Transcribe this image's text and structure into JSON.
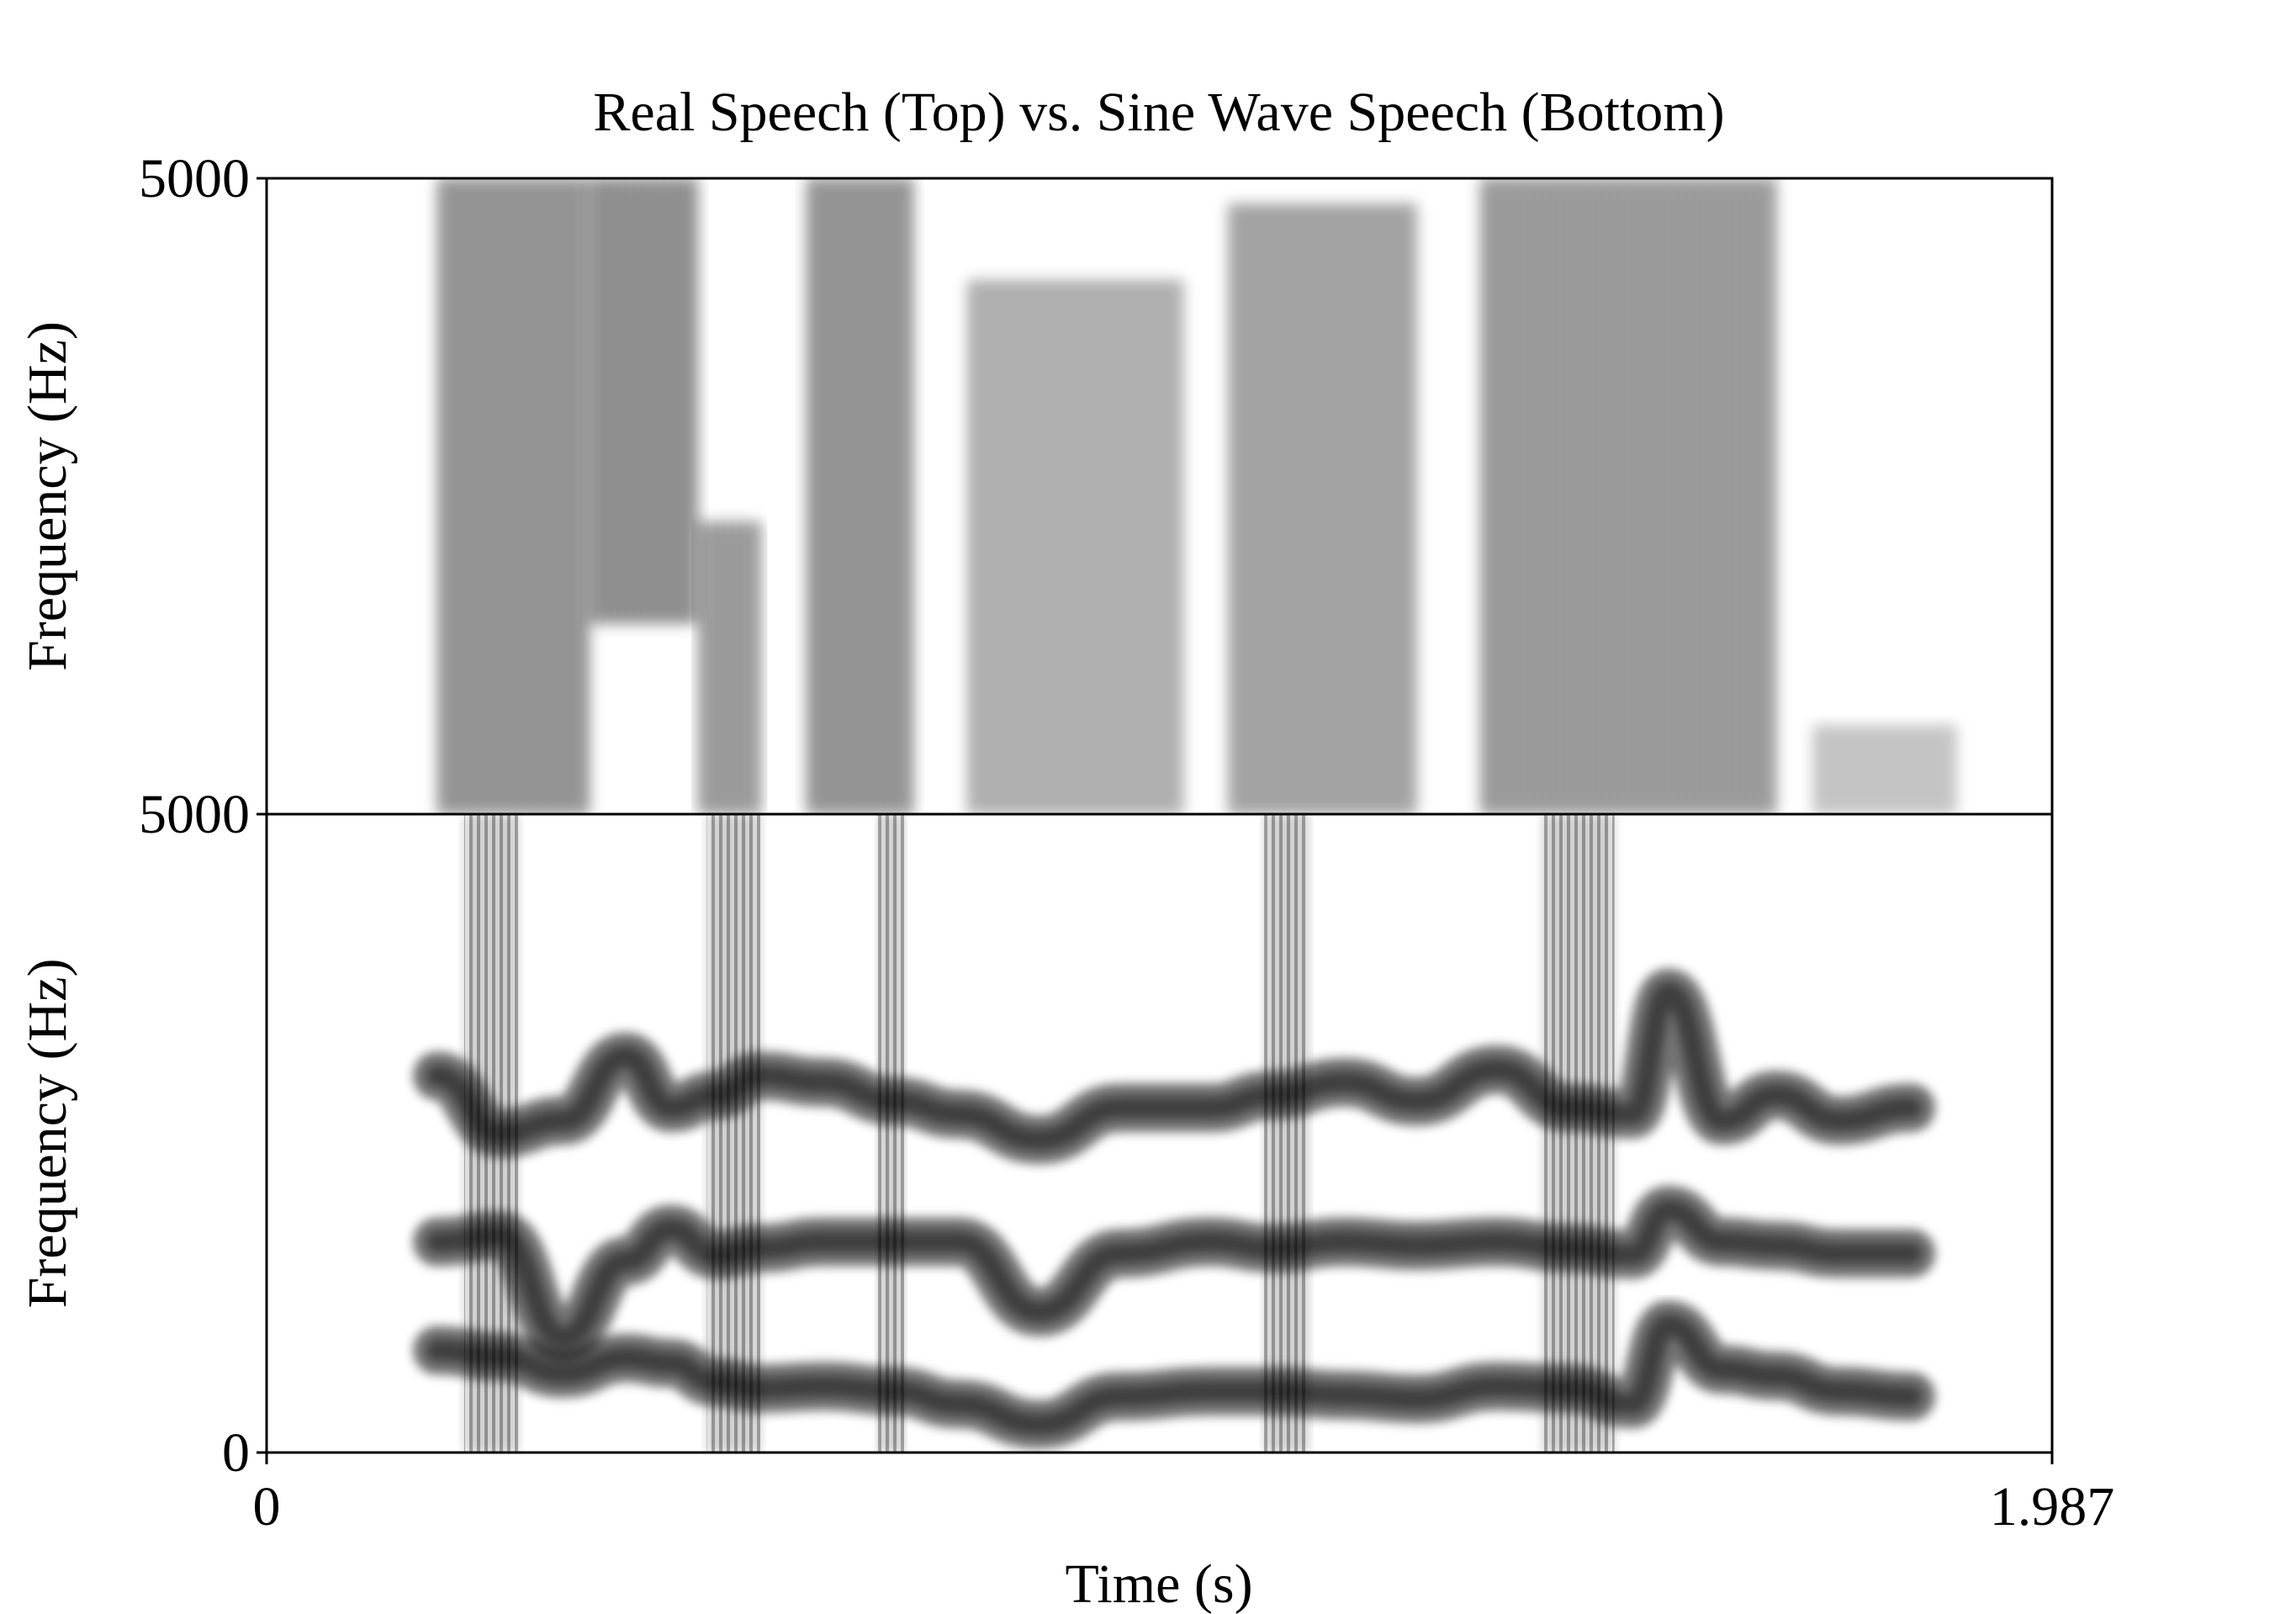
{
  "chart_data": {
    "type": "heatmap",
    "title": "Real Speech (Top) vs. Sine Wave Speech (Bottom)",
    "xlabel": "Time (s)",
    "xlim": [
      0,
      1.987
    ],
    "x_tick_labels": [
      "0",
      "1.987"
    ],
    "panels": [
      {
        "name": "",
        "ylabel": "Frequency (Hz)",
        "ylim": [
          0,
          5000
        ],
        "y_tick_labels": [
          "5000"
        ],
        "segments": [
          {
            "t0": 0.19,
            "t1": 0.36,
            "f0": 0,
            "f1": 5000,
            "intensity": 0.75
          },
          {
            "t0": 0.36,
            "t1": 0.48,
            "f0": 1500,
            "f1": 5000,
            "intensity": 0.8
          },
          {
            "t0": 0.48,
            "t1": 0.55,
            "f0": 0,
            "f1": 2300,
            "intensity": 0.7
          },
          {
            "t0": 0.6,
            "t1": 0.72,
            "f0": 0,
            "f1": 5000,
            "intensity": 0.75
          },
          {
            "t0": 0.78,
            "t1": 1.02,
            "f0": 0,
            "f1": 4200,
            "intensity": 0.55
          },
          {
            "t0": 1.07,
            "t1": 1.28,
            "f0": 0,
            "f1": 4800,
            "intensity": 0.65
          },
          {
            "t0": 1.35,
            "t1": 1.68,
            "f0": 0,
            "f1": 5000,
            "intensity": 0.7
          },
          {
            "t0": 1.72,
            "t1": 1.88,
            "f0": 0,
            "f1": 700,
            "intensity": 0.4
          }
        ]
      },
      {
        "name": "",
        "ylabel": "Frequency (Hz)",
        "ylim": [
          0,
          5000
        ],
        "y_tick_labels": [
          "5000",
          "0"
        ],
        "formants": [
          {
            "t": [
              0.19,
              0.26,
              0.33,
              0.4,
              0.45,
              0.5,
              0.55,
              0.62,
              0.7,
              0.77,
              0.86,
              0.95,
              1.05,
              1.12,
              1.2,
              1.28,
              1.37,
              1.45,
              1.52,
              1.56,
              1.62,
              1.68,
              1.75,
              1.83
            ],
            "f": [
              800,
              750,
              620,
              740,
              700,
              550,
              500,
              520,
              480,
              380,
              220,
              440,
              480,
              480,
              450,
              420,
              520,
              500,
              380,
              1000,
              650,
              600,
              480,
              440
            ]
          },
          {
            "t": [
              0.19,
              0.26,
              0.33,
              0.4,
              0.45,
              0.5,
              0.55,
              0.62,
              0.7,
              0.77,
              0.86,
              0.95,
              1.05,
              1.12,
              1.2,
              1.28,
              1.37,
              1.45,
              1.52,
              1.56,
              1.62,
              1.68,
              1.75,
              1.83
            ],
            "f": [
              1650,
              1700,
              900,
              1500,
              1750,
              1550,
              1600,
              1650,
              1650,
              1650,
              1100,
              1560,
              1650,
              1600,
              1650,
              1620,
              1650,
              1600,
              1550,
              1900,
              1650,
              1620,
              1560,
              1560
            ]
          },
          {
            "t": [
              0.19,
              0.26,
              0.33,
              0.4,
              0.45,
              0.5,
              0.55,
              0.62,
              0.7,
              0.77,
              0.86,
              0.95,
              1.05,
              1.12,
              1.2,
              1.28,
              1.37,
              1.45,
              1.52,
              1.56,
              1.62,
              1.68,
              1.75,
              1.83
            ],
            "f": [
              2950,
              2500,
              2600,
              3100,
              2700,
              2800,
              2950,
              2900,
              2750,
              2650,
              2450,
              2700,
              2700,
              2800,
              2900,
              2750,
              3000,
              2700,
              2650,
              3600,
              2600,
              2800,
              2600,
              2700
            ]
          }
        ],
        "bursts": [
          {
            "t0": 0.22,
            "t1": 0.28,
            "f1": 5000
          },
          {
            "t0": 0.49,
            "t1": 0.55,
            "f1": 5000
          },
          {
            "t0": 0.68,
            "t1": 0.71,
            "f1": 5000
          },
          {
            "t0": 1.11,
            "t1": 1.16,
            "f1": 5000
          },
          {
            "t0": 1.42,
            "t1": 1.5,
            "f1": 5000
          }
        ]
      }
    ],
    "colormap": "grayscale (dark = high energy)"
  }
}
